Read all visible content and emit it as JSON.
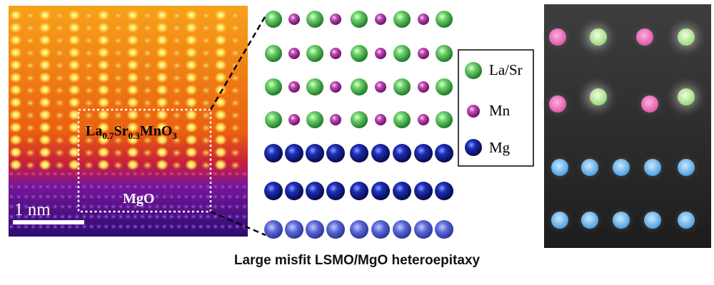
{
  "stem_image": {
    "lsmo_label": {
      "p1": "La",
      "s1": "0.7",
      "p2": "Sr",
      "s2": "0.3",
      "p3": "MnO",
      "s3": "3"
    },
    "mgo_label": "MgO",
    "scale_bar_label": "1 nm"
  },
  "atom_model": {
    "legend": [
      {
        "label": "La/Sr",
        "color": "#3cb34a"
      },
      {
        "label": "Mn",
        "color": "#a03099"
      },
      {
        "label": "Mg",
        "color": "#0f1f8c"
      }
    ]
  },
  "caption": "Large misfit LSMO/MgO heteroepitaxy"
}
